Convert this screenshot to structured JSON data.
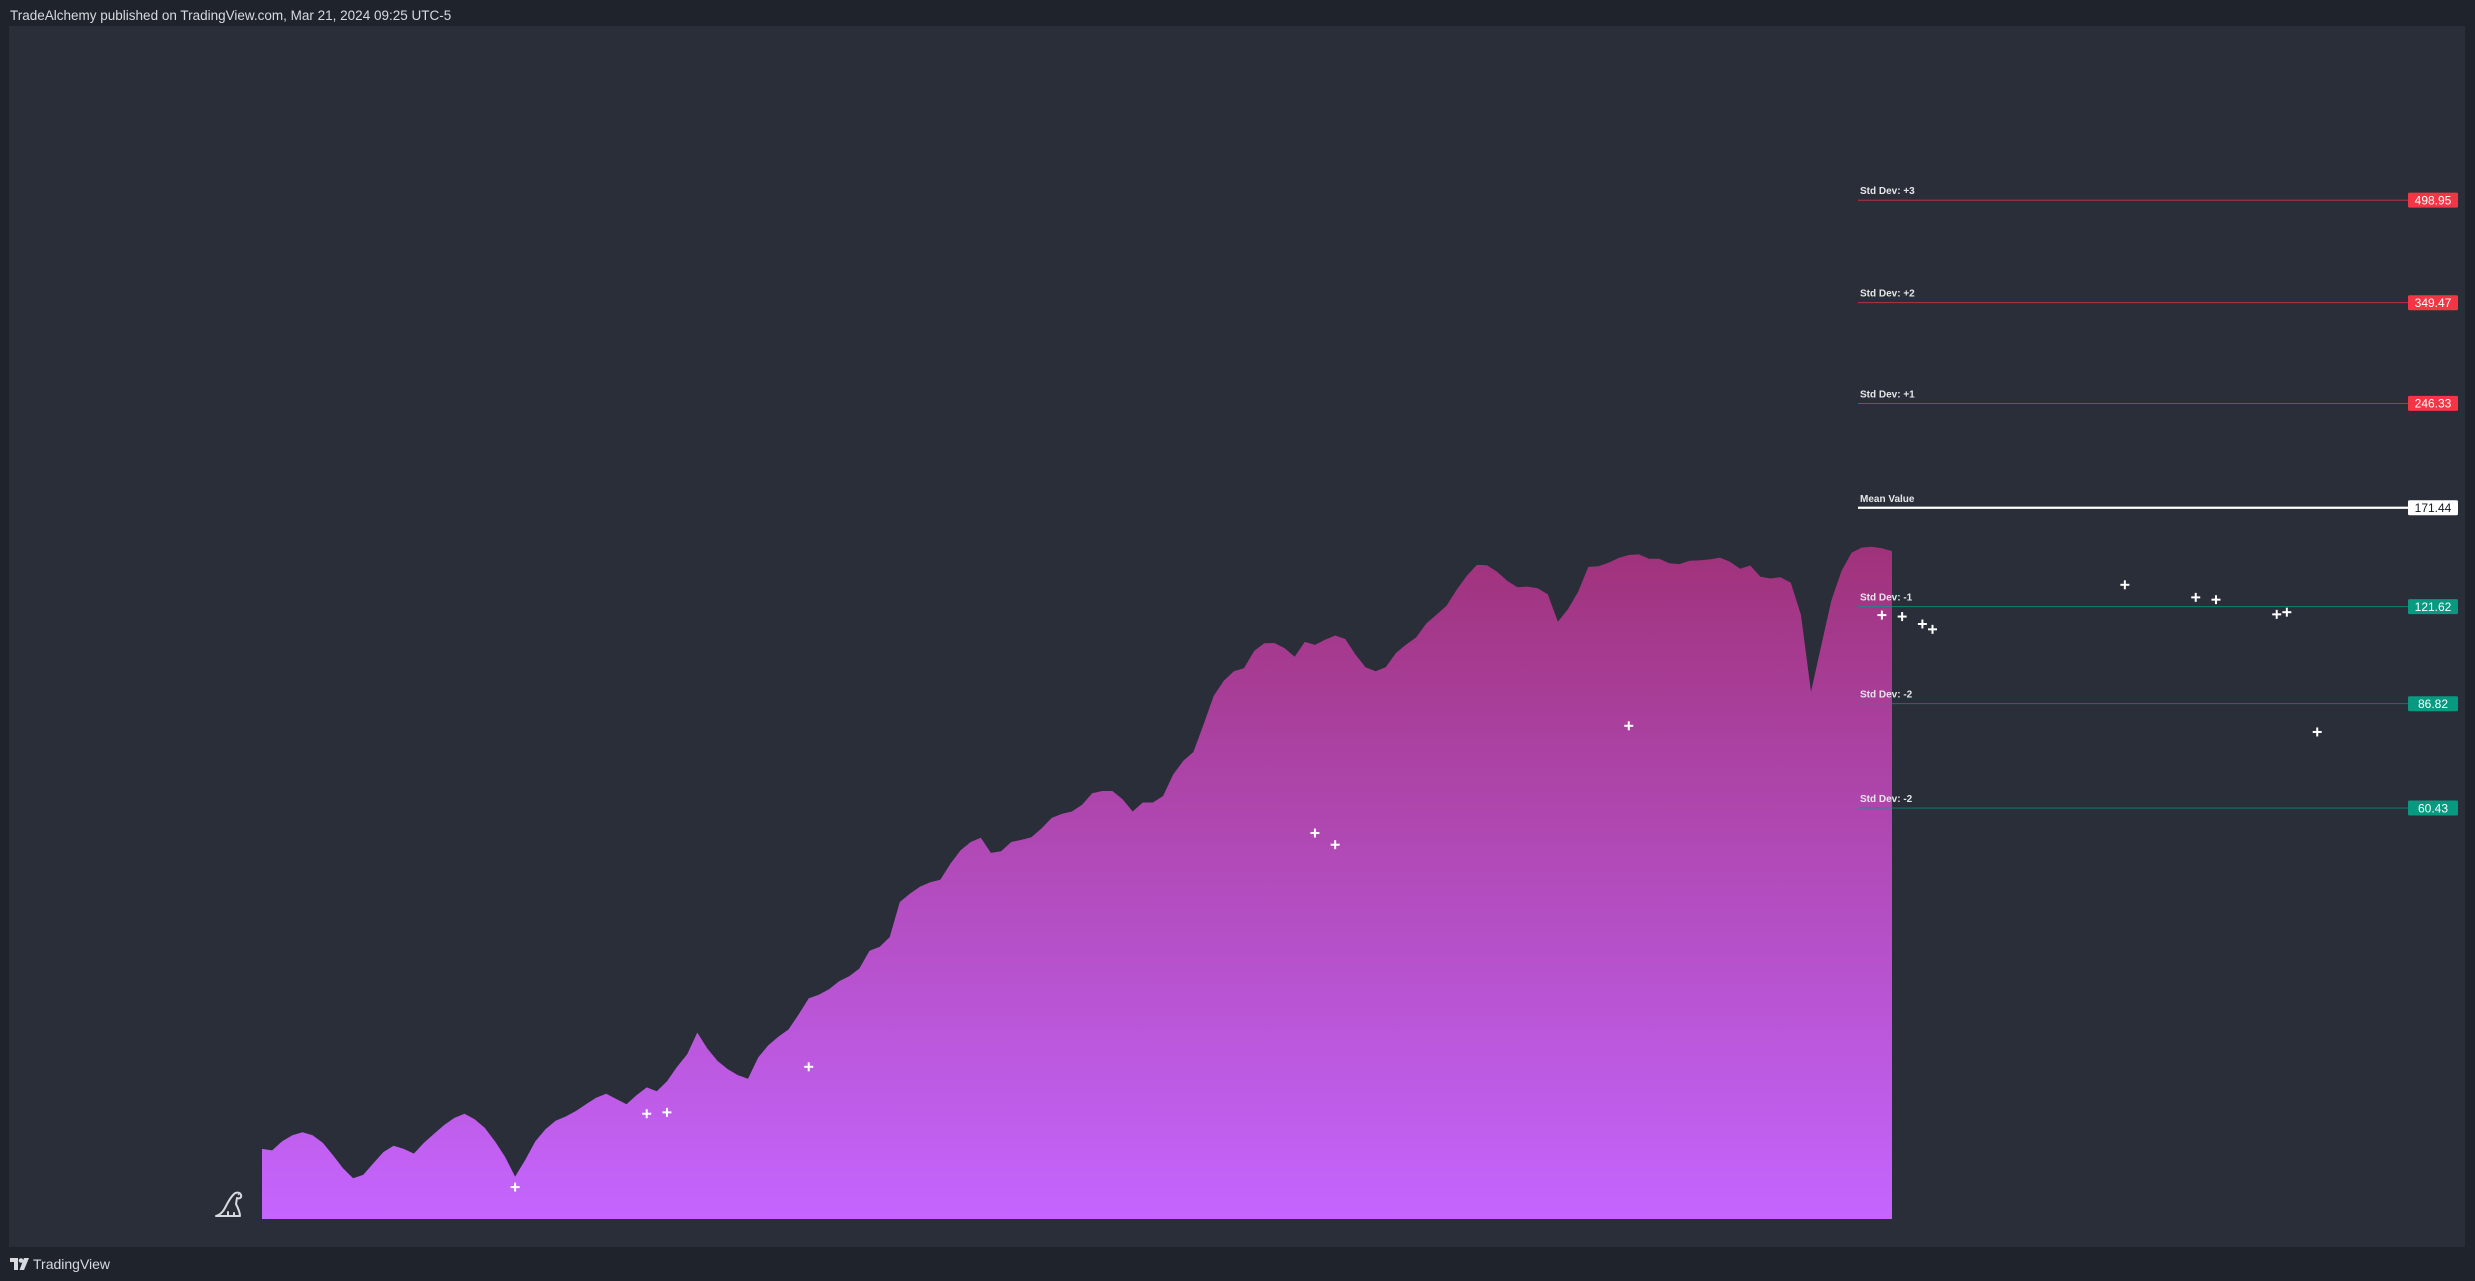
{
  "header": {
    "publisher_text": "TradeAlchemy published on TradingView.com, Mar 21, 2024 09:25 UTC-5"
  },
  "footer": {
    "brand": "TradingView",
    "logo_icon": "tradingview-logo-icon"
  },
  "watermark_icon": "dinosaur-icon",
  "colors": {
    "background": "#2a2e38",
    "frame": "#1f232b",
    "area_top": "#a0327a",
    "area_bottom": "#c565ff",
    "negative_tag": "#f23645",
    "positive_tag": "#089981",
    "mean_tag": "#ffffff",
    "marker": "#ffffff"
  },
  "chart_data": {
    "type": "area",
    "title": "",
    "xlabel": "",
    "ylabel": "",
    "y_scale": "log",
    "ylim": [
      14.5,
      1000
    ],
    "series": [
      {
        "values": [
          18.5,
          18.4,
          19.0,
          19.4,
          19.6,
          19.4,
          18.9,
          18.1,
          17.3,
          16.7,
          16.9,
          17.6,
          18.3,
          18.7,
          18.5,
          18.2,
          18.9,
          19.5,
          20.1,
          20.6,
          20.9,
          20.5,
          19.9,
          19.0,
          18.0,
          16.8,
          17.8,
          19.0,
          19.8,
          20.4,
          20.7,
          21.1,
          21.6,
          22.1,
          22.4,
          22.0,
          21.6,
          22.3,
          22.9,
          22.6,
          23.4,
          24.6,
          25.7,
          27.7,
          26.2,
          25.1,
          24.4,
          23.9,
          23.6,
          25.4,
          26.5,
          27.3,
          28.0,
          29.5,
          31.2,
          31.6,
          32.2,
          33.1,
          33.7,
          34.6,
          36.8,
          37.3,
          38.6,
          43.6,
          44.9,
          46.0,
          46.7,
          47.1,
          49.8,
          52.2,
          53.7,
          54.5,
          51.7,
          52.0,
          53.7,
          54.1,
          54.6,
          56.3,
          58.4,
          59.2,
          59.7,
          61.1,
          63.6,
          64.1,
          64.1,
          62.3,
          59.7,
          61.6,
          61.6,
          63.0,
          67.9,
          71.2,
          73.4,
          80.8,
          89.2,
          94.0,
          97.2,
          98.2,
          104.3,
          107.1,
          107.2,
          105.3,
          102.2,
          107.6,
          106.5,
          108.4,
          110.0,
          108.7,
          103.0,
          98.5,
          97.2,
          98.6,
          103.5,
          106.6,
          109.3,
          114.7,
          118.2,
          122.0,
          129.0,
          135.4,
          140.6,
          140.4,
          137.2,
          133.0,
          130.1,
          130.4,
          129.6,
          126.9,
          115.4,
          120.6,
          128.0,
          139.6,
          139.9,
          141.6,
          144.0,
          145.5,
          145.8,
          143.6,
          143.6,
          141.4,
          141.0,
          142.6,
          142.8,
          143.3,
          144.2,
          142.1,
          138.7,
          140.3,
          134.9,
          134.1,
          134.7,
          132.1,
          118.3,
          90.5,
          106.0,
          124.1,
          137.5,
          146.6,
          149.3,
          149.7,
          149.0,
          147.5
        ]
      }
    ],
    "markers": [
      {
        "index": 25,
        "value": 16.2
      },
      {
        "index": 38,
        "value": 20.9
      },
      {
        "index": 40,
        "value": 21.0
      },
      {
        "index": 54,
        "value": 24.6
      },
      {
        "index": 104,
        "value": 55.4
      },
      {
        "index": 106,
        "value": 53.2
      },
      {
        "index": 135,
        "value": 80.4
      },
      {
        "index": 160,
        "value": 118.1
      },
      {
        "index": 162,
        "value": 117.5
      },
      {
        "index": 164,
        "value": 114.5
      },
      {
        "index": 165,
        "value": 112.4
      },
      {
        "index": 184,
        "value": 131.2
      },
      {
        "index": 191,
        "value": 125.6
      },
      {
        "index": 193,
        "value": 124.6
      },
      {
        "index": 199,
        "value": 118.4
      },
      {
        "index": 200,
        "value": 119.3
      },
      {
        "index": 203,
        "value": 78.7
      }
    ],
    "levels": [
      {
        "label": "Std Dev: +3",
        "value": "498.95",
        "value_num": 498.95,
        "kind": "negative"
      },
      {
        "label": "Std Dev: +2",
        "value": "349.47",
        "value_num": 349.47,
        "kind": "negative"
      },
      {
        "label": "Std Dev: +1",
        "value": "246.33",
        "value_num": 246.33,
        "kind": "negative"
      },
      {
        "label": "Mean Value",
        "value": "171.44",
        "value_num": 171.44,
        "kind": "mean"
      },
      {
        "label": "Std Dev: -1",
        "value": "121.62",
        "value_num": 121.62,
        "kind": "positive"
      },
      {
        "label": "Std Dev: -2",
        "value": "86.82",
        "value_num": 86.82,
        "kind": "positive"
      },
      {
        "label": "Std Dev: -2",
        "value": "60.43",
        "value_num": 60.43,
        "kind": "positive"
      }
    ]
  }
}
